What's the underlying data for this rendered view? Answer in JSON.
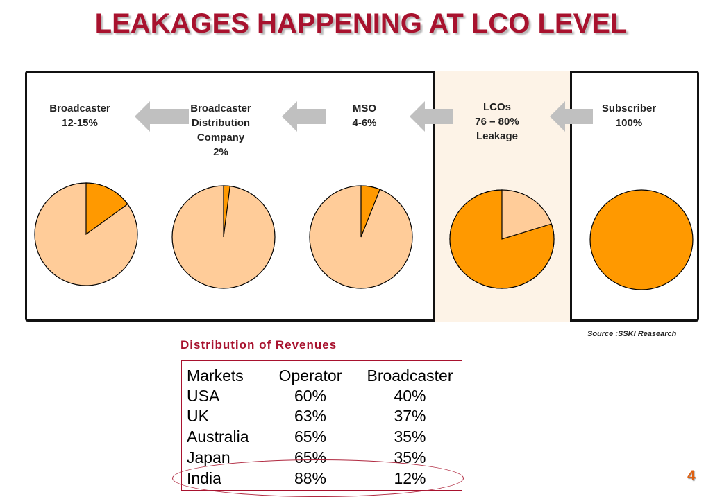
{
  "title": "LEAKAGES HAPPENING AT LCO LEVEL",
  "stages": [
    {
      "name": "Broadcaster",
      "value": "12-15%"
    },
    {
      "name": "Broadcaster Distribution Company",
      "value": "2%"
    },
    {
      "name": "MSO",
      "value": "4-6%"
    },
    {
      "name": "LCOs",
      "value": "76 – 80%",
      "note": "Leakage"
    },
    {
      "name": "Subscriber",
      "value": "100%"
    }
  ],
  "source": "Source :SSKI Reasearch",
  "distribution_title": "Distribution of Revenues",
  "page_number": "4",
  "colors": {
    "title": "#a8122e",
    "slice_dark": "#ff9900",
    "slice_light": "#ffcc99",
    "arrow": "#c0c0c0",
    "lco_panel": "#fdf3e7"
  },
  "chart_data": [
    {
      "type": "pie",
      "title": "Broadcaster",
      "slices": [
        {
          "label": "Broadcaster",
          "value": 15
        },
        {
          "label": "",
          "value": 85
        }
      ]
    },
    {
      "type": "pie",
      "title": "Broadcaster Distribution Company",
      "slices": [
        {
          "label": "Broadcaster Distribution Company",
          "value": 2
        },
        {
          "label": "",
          "value": 98
        }
      ]
    },
    {
      "type": "pie",
      "title": "MSO",
      "slices": [
        {
          "label": "MSO",
          "value": 6
        },
        {
          "label": "",
          "value": 94
        }
      ]
    },
    {
      "type": "pie",
      "title": "LCOs",
      "slices": [
        {
          "label": "LCOs",
          "value": 80
        },
        {
          "label": "",
          "value": 20
        }
      ]
    },
    {
      "type": "pie",
      "title": "Subscriber",
      "slices": [
        {
          "label": "Subscriber",
          "value": 100
        }
      ]
    },
    {
      "type": "table",
      "title": "Distribution of Revenues",
      "columns": [
        "Markets",
        "Operator",
        "Broadcaster"
      ],
      "rows": [
        [
          "USA",
          "60%",
          "40%"
        ],
        [
          "UK",
          "63%",
          "37%"
        ],
        [
          "Australia",
          "65%",
          "35%"
        ],
        [
          "Japan",
          "65%",
          "35%"
        ],
        [
          "India",
          "88%",
          "12%"
        ]
      ]
    }
  ]
}
